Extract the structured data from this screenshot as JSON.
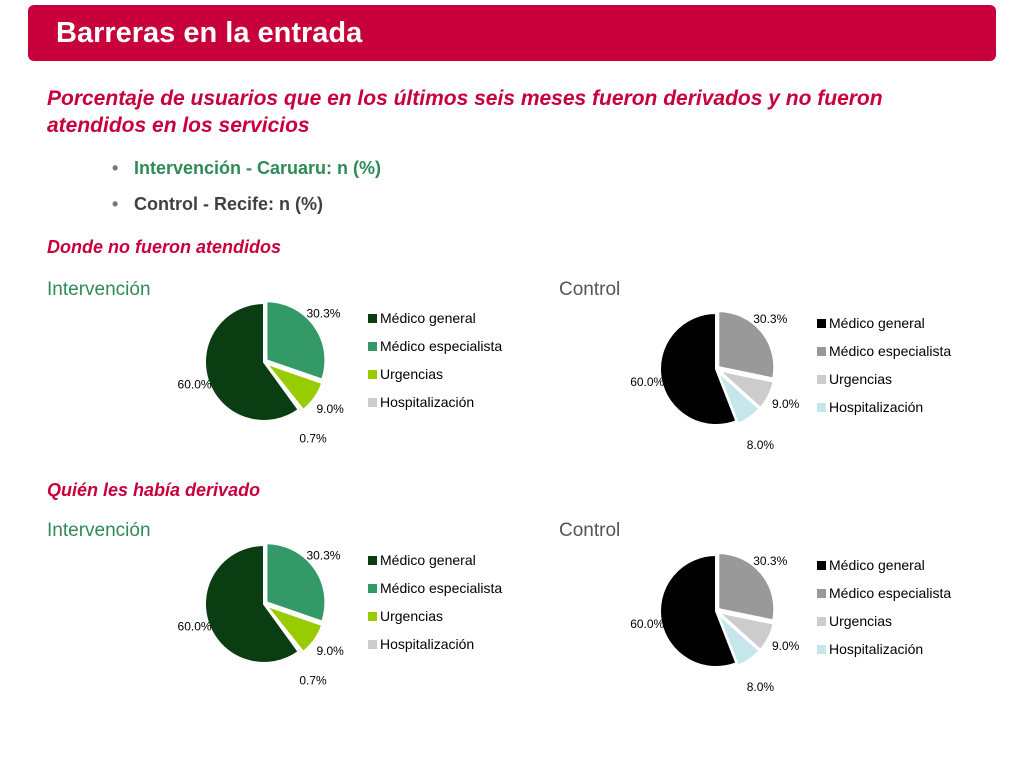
{
  "header": {
    "title": "Barreras en la entrada"
  },
  "subtitle": "Porcentaje de usuarios que en los últimos seis meses fueron derivados y no fueron atendidos en los servicios",
  "bullets": [
    "Intervención - Caruaru:  n (%)",
    "Control - Recife: n (%)"
  ],
  "sections": {
    "donde": "Donde no fueron atendidos",
    "quien": "Quién les había derivado"
  },
  "chart_labels": {
    "intervencion": "Intervención",
    "control": "Control"
  },
  "legend_labels": [
    "Médico general",
    "Médico especialista",
    "Urgencias",
    "Hospitalización"
  ],
  "colors": {
    "brand": "#c8003c",
    "intervencion": [
      "#0b3d12",
      "#339966",
      "#99cc00",
      "#cccccc"
    ],
    "control": [
      "#000000",
      "#999999",
      "#cccccc",
      "#c5e6ea"
    ]
  },
  "chart_data": [
    {
      "type": "pie",
      "group": "Intervención",
      "section": "Donde no fueron atendidos",
      "categories": [
        "Médico general",
        "Médico especialista",
        "Urgencias",
        "Hospitalización"
      ],
      "values": [
        60.0,
        30.3,
        9.0,
        0.7
      ],
      "labels": [
        "60.0%",
        "30.3%",
        "9.0%",
        "0.7%"
      ]
    },
    {
      "type": "pie",
      "group": "Control",
      "section": "Donde no fueron atendidos",
      "categories": [
        "Médico general",
        "Médico especialista",
        "Urgencias",
        "Hospitalización"
      ],
      "values": [
        60.0,
        30.3,
        9.0,
        8.0
      ],
      "labels": [
        "60.0%",
        "30.3%",
        "9.0%",
        "8.0%"
      ]
    },
    {
      "type": "pie",
      "group": "Intervención",
      "section": "Quién les había derivado",
      "categories": [
        "Médico general",
        "Médico especialista",
        "Urgencias",
        "Hospitalización"
      ],
      "values": [
        60.0,
        30.3,
        9.0,
        0.7
      ],
      "labels": [
        "60.0%",
        "30.3%",
        "9.0%",
        "0.7%"
      ]
    },
    {
      "type": "pie",
      "group": "Control",
      "section": "Quién les había derivado",
      "categories": [
        "Médico general",
        "Médico especialista",
        "Urgencias",
        "Hospitalización"
      ],
      "values": [
        60.0,
        30.3,
        9.0,
        8.0
      ],
      "labels": [
        "60.0%",
        "30.3%",
        "9.0%",
        "8.0%"
      ]
    }
  ]
}
